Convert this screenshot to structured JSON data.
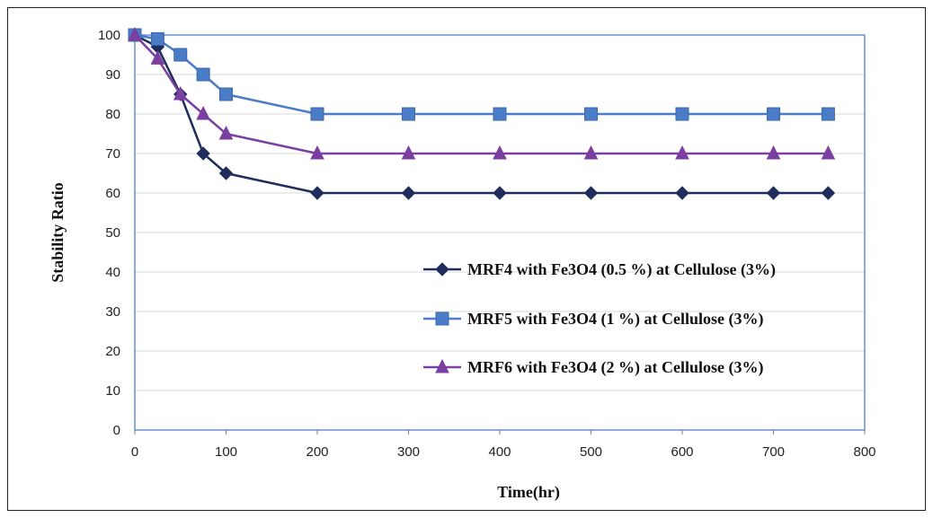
{
  "chart_data": {
    "type": "line",
    "title": "",
    "xlabel": "Time(hr)",
    "ylabel": "Stability Ratio",
    "xlim": [
      0,
      800
    ],
    "ylim": [
      0,
      100
    ],
    "x_ticks": [
      "0",
      "100",
      "200",
      "300",
      "400",
      "500",
      "600",
      "700",
      "800"
    ],
    "y_ticks": [
      "0",
      "10",
      "20",
      "30",
      "40",
      "50",
      "60",
      "70",
      "80",
      "90",
      "100"
    ],
    "grid": "horizontal",
    "legend_position": "right",
    "series": [
      {
        "name": "MRF4 with Fe3O4 (0.5 %) at Cellulose (3%)",
        "color": "#1f2d5c",
        "marker": "diamond",
        "x": [
          0,
          25,
          50,
          75,
          100,
          200,
          300,
          400,
          500,
          600,
          700,
          760
        ],
        "values": [
          100,
          97,
          85,
          70,
          65,
          60,
          60,
          60,
          60,
          60,
          60,
          60
        ]
      },
      {
        "name": "MRF5 with Fe3O4 (1 %) at Cellulose (3%)",
        "color": "#4a7cc7",
        "marker": "square",
        "x": [
          0,
          25,
          50,
          75,
          100,
          200,
          300,
          400,
          500,
          600,
          700,
          760
        ],
        "values": [
          100,
          99,
          95,
          90,
          85,
          80,
          80,
          80,
          80,
          80,
          80,
          80
        ]
      },
      {
        "name": "MRF6 with Fe3O4 (2 %) at Cellulose (3%)",
        "color": "#7a3fa0",
        "marker": "triangle",
        "x": [
          0,
          25,
          50,
          75,
          100,
          200,
          300,
          400,
          500,
          600,
          700,
          760
        ],
        "values": [
          100,
          94,
          85,
          80,
          75,
          70,
          70,
          70,
          70,
          70,
          70,
          70
        ]
      }
    ]
  }
}
